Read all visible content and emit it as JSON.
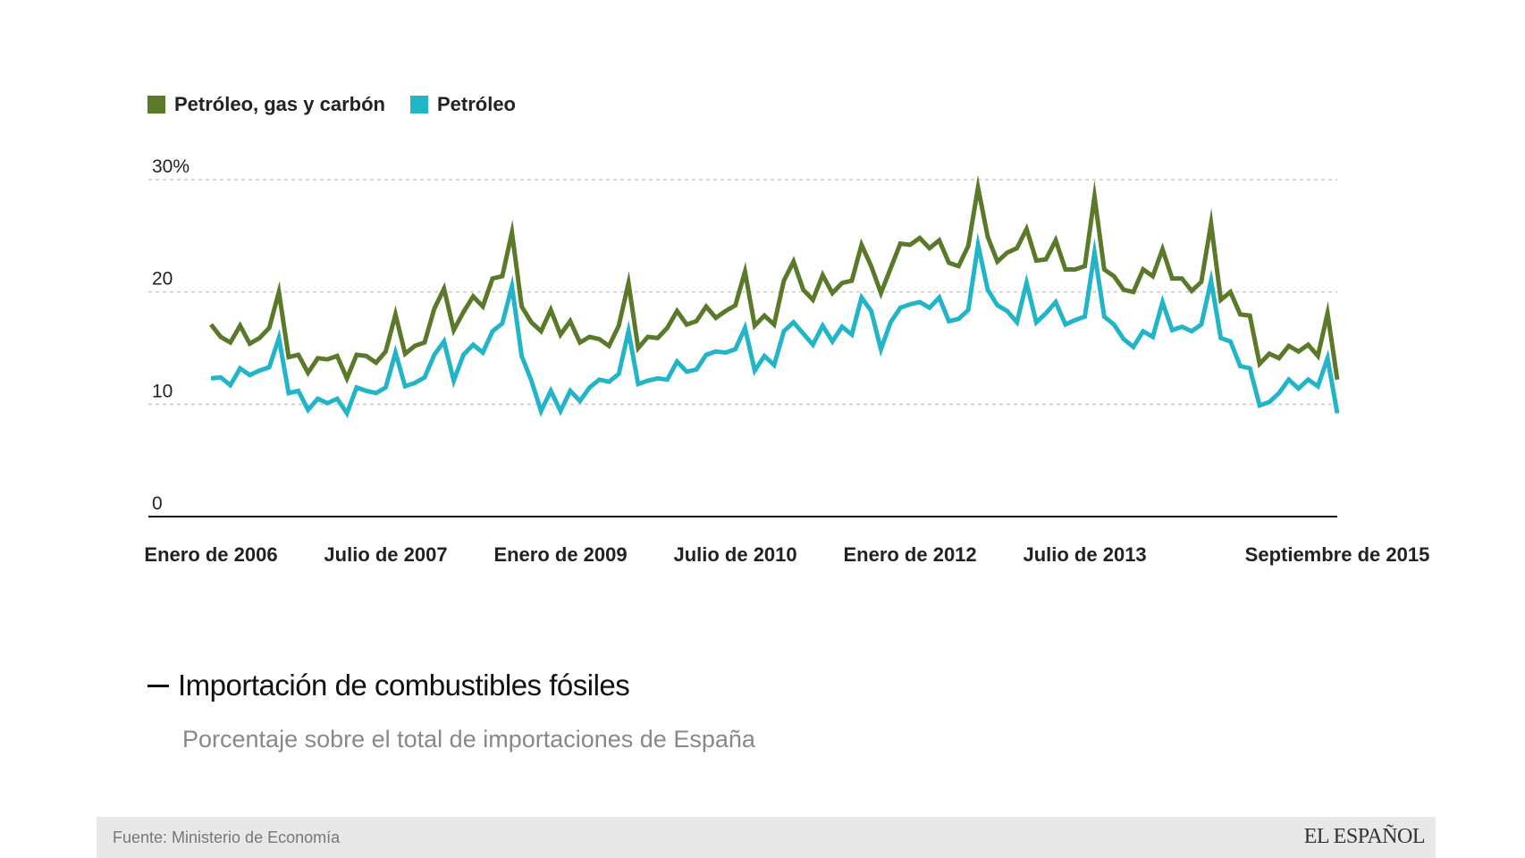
{
  "chart_data": {
    "type": "line",
    "title": "Importación de combustibles fósiles",
    "subtitle": "Porcentaje sobre el total de importaciones de España",
    "x_start": "Enero de 2006",
    "x_end": "Septiembre de 2015",
    "x_tick_labels": [
      "Enero de 2006",
      "Julio de 2007",
      "Enero de 2009",
      "Julio de 2010",
      "Enero de 2012",
      "Julio de 2013",
      "Septiembre de 2015"
    ],
    "x_tick_months": [
      0,
      18,
      36,
      54,
      72,
      90,
      116
    ],
    "y_tick_labels": [
      "30%",
      "20",
      "10",
      "0"
    ],
    "y_tick_values": [
      30,
      20,
      10,
      0
    ],
    "ylim": [
      0,
      30
    ],
    "grid": true,
    "legend_position": "top-left",
    "series": [
      {
        "name": "Petróleo, gas y carbón",
        "color": "#5a7a2a",
        "values": [
          17.1,
          16.0,
          15.5,
          17.0,
          15.4,
          15.9,
          16.8,
          20.0,
          14.2,
          14.4,
          12.8,
          14.1,
          14.0,
          14.3,
          12.3,
          14.4,
          14.3,
          13.7,
          14.7,
          18.0,
          14.5,
          15.2,
          15.5,
          18.5,
          20.3,
          16.6,
          18.2,
          19.6,
          18.7,
          21.2,
          21.4,
          25.3,
          18.7,
          17.3,
          16.5,
          18.4,
          16.2,
          17.4,
          15.5,
          16.0,
          15.8,
          15.2,
          17.0,
          20.8,
          15.0,
          16.0,
          15.9,
          16.8,
          18.3,
          17.1,
          17.4,
          18.7,
          17.7,
          18.3,
          18.8,
          21.8,
          17.0,
          17.9,
          17.1,
          21.0,
          22.7,
          20.2,
          19.3,
          21.5,
          19.9,
          20.8,
          21.0,
          24.2,
          22.3,
          19.9,
          22.1,
          24.3,
          24.2,
          24.8,
          23.9,
          24.6,
          22.6,
          22.3,
          24.1,
          29.3,
          24.9,
          22.7,
          23.5,
          23.9,
          25.6,
          22.8,
          22.9,
          24.6,
          22.0,
          22.0,
          22.3,
          28.5,
          22.0,
          21.4,
          20.2,
          20.0,
          22.0,
          21.4,
          23.8,
          21.2,
          21.2,
          20.1,
          20.9,
          26.1,
          19.3,
          20.0,
          18.0,
          17.9,
          13.6,
          14.5,
          14.1,
          15.2,
          14.7,
          15.3,
          14.3,
          18.1,
          12.2
        ]
      },
      {
        "name": "Petróleo",
        "color": "#22b5c7",
        "values": [
          12.3,
          12.4,
          11.7,
          13.2,
          12.6,
          13.0,
          13.3,
          15.9,
          11.0,
          11.2,
          9.5,
          10.5,
          10.1,
          10.5,
          9.2,
          11.5,
          11.2,
          11.0,
          11.5,
          14.6,
          11.6,
          11.9,
          12.4,
          14.4,
          15.6,
          12.1,
          14.4,
          15.3,
          14.6,
          16.5,
          17.2,
          20.5,
          14.3,
          12.1,
          9.4,
          11.2,
          9.4,
          11.2,
          10.3,
          11.5,
          12.2,
          12.0,
          12.7,
          16.5,
          11.8,
          12.1,
          12.3,
          12.2,
          13.8,
          12.9,
          13.1,
          14.4,
          14.7,
          14.6,
          14.9,
          16.8,
          13.0,
          14.3,
          13.5,
          16.5,
          17.3,
          16.3,
          15.3,
          17.0,
          15.6,
          16.9,
          16.2,
          19.5,
          18.3,
          14.9,
          17.3,
          18.6,
          18.9,
          19.1,
          18.6,
          19.5,
          17.4,
          17.6,
          18.4,
          24.2,
          20.2,
          18.8,
          18.3,
          17.3,
          20.8,
          17.3,
          18.1,
          19.1,
          17.1,
          17.5,
          17.8,
          23.5,
          17.8,
          17.1,
          15.8,
          15.1,
          16.5,
          16.0,
          19.1,
          16.6,
          16.9,
          16.5,
          17.1,
          21.0,
          15.9,
          15.6,
          13.4,
          13.2,
          9.9,
          10.2,
          11.0,
          12.2,
          11.4,
          12.2,
          11.6,
          14.1,
          9.2
        ]
      }
    ]
  },
  "footer": {
    "source": "Fuente: Ministerio de Economía",
    "brand": "EL ESPAÑOL"
  }
}
